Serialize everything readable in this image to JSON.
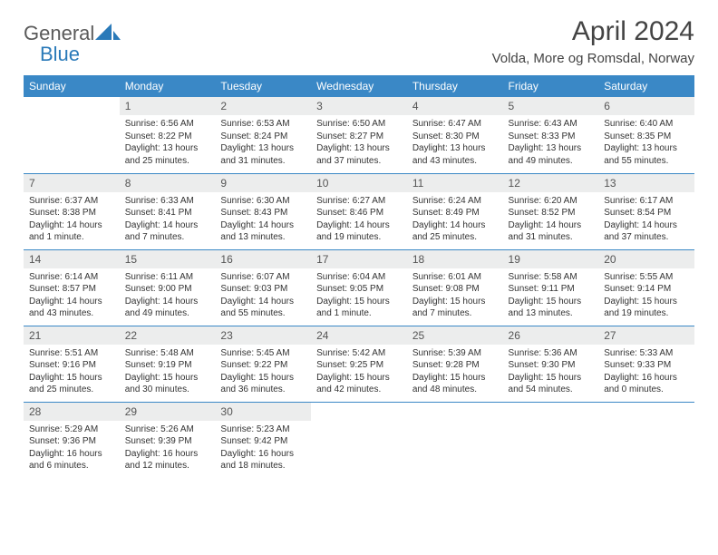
{
  "logo": {
    "text1": "General",
    "text2": "Blue"
  },
  "title": "April 2024",
  "location": "Volda, More og Romsdal, Norway",
  "colors": {
    "header_bg": "#3a88c6",
    "header_text": "#ffffff",
    "daynum_bg": "#eceded",
    "border": "#3a88c6",
    "logo_gray": "#5a5a5a",
    "logo_blue": "#2a7ab9"
  },
  "day_headers": [
    "Sunday",
    "Monday",
    "Tuesday",
    "Wednesday",
    "Thursday",
    "Friday",
    "Saturday"
  ],
  "weeks": [
    [
      {
        "n": "",
        "empty": true
      },
      {
        "n": "1",
        "sunrise": "Sunrise: 6:56 AM",
        "sunset": "Sunset: 8:22 PM",
        "daylight": "Daylight: 13 hours and 25 minutes."
      },
      {
        "n": "2",
        "sunrise": "Sunrise: 6:53 AM",
        "sunset": "Sunset: 8:24 PM",
        "daylight": "Daylight: 13 hours and 31 minutes."
      },
      {
        "n": "3",
        "sunrise": "Sunrise: 6:50 AM",
        "sunset": "Sunset: 8:27 PM",
        "daylight": "Daylight: 13 hours and 37 minutes."
      },
      {
        "n": "4",
        "sunrise": "Sunrise: 6:47 AM",
        "sunset": "Sunset: 8:30 PM",
        "daylight": "Daylight: 13 hours and 43 minutes."
      },
      {
        "n": "5",
        "sunrise": "Sunrise: 6:43 AM",
        "sunset": "Sunset: 8:33 PM",
        "daylight": "Daylight: 13 hours and 49 minutes."
      },
      {
        "n": "6",
        "sunrise": "Sunrise: 6:40 AM",
        "sunset": "Sunset: 8:35 PM",
        "daylight": "Daylight: 13 hours and 55 minutes."
      }
    ],
    [
      {
        "n": "7",
        "sunrise": "Sunrise: 6:37 AM",
        "sunset": "Sunset: 8:38 PM",
        "daylight": "Daylight: 14 hours and 1 minute."
      },
      {
        "n": "8",
        "sunrise": "Sunrise: 6:33 AM",
        "sunset": "Sunset: 8:41 PM",
        "daylight": "Daylight: 14 hours and 7 minutes."
      },
      {
        "n": "9",
        "sunrise": "Sunrise: 6:30 AM",
        "sunset": "Sunset: 8:43 PM",
        "daylight": "Daylight: 14 hours and 13 minutes."
      },
      {
        "n": "10",
        "sunrise": "Sunrise: 6:27 AM",
        "sunset": "Sunset: 8:46 PM",
        "daylight": "Daylight: 14 hours and 19 minutes."
      },
      {
        "n": "11",
        "sunrise": "Sunrise: 6:24 AM",
        "sunset": "Sunset: 8:49 PM",
        "daylight": "Daylight: 14 hours and 25 minutes."
      },
      {
        "n": "12",
        "sunrise": "Sunrise: 6:20 AM",
        "sunset": "Sunset: 8:52 PM",
        "daylight": "Daylight: 14 hours and 31 minutes."
      },
      {
        "n": "13",
        "sunrise": "Sunrise: 6:17 AM",
        "sunset": "Sunset: 8:54 PM",
        "daylight": "Daylight: 14 hours and 37 minutes."
      }
    ],
    [
      {
        "n": "14",
        "sunrise": "Sunrise: 6:14 AM",
        "sunset": "Sunset: 8:57 PM",
        "daylight": "Daylight: 14 hours and 43 minutes."
      },
      {
        "n": "15",
        "sunrise": "Sunrise: 6:11 AM",
        "sunset": "Sunset: 9:00 PM",
        "daylight": "Daylight: 14 hours and 49 minutes."
      },
      {
        "n": "16",
        "sunrise": "Sunrise: 6:07 AM",
        "sunset": "Sunset: 9:03 PM",
        "daylight": "Daylight: 14 hours and 55 minutes."
      },
      {
        "n": "17",
        "sunrise": "Sunrise: 6:04 AM",
        "sunset": "Sunset: 9:05 PM",
        "daylight": "Daylight: 15 hours and 1 minute."
      },
      {
        "n": "18",
        "sunrise": "Sunrise: 6:01 AM",
        "sunset": "Sunset: 9:08 PM",
        "daylight": "Daylight: 15 hours and 7 minutes."
      },
      {
        "n": "19",
        "sunrise": "Sunrise: 5:58 AM",
        "sunset": "Sunset: 9:11 PM",
        "daylight": "Daylight: 15 hours and 13 minutes."
      },
      {
        "n": "20",
        "sunrise": "Sunrise: 5:55 AM",
        "sunset": "Sunset: 9:14 PM",
        "daylight": "Daylight: 15 hours and 19 minutes."
      }
    ],
    [
      {
        "n": "21",
        "sunrise": "Sunrise: 5:51 AM",
        "sunset": "Sunset: 9:16 PM",
        "daylight": "Daylight: 15 hours and 25 minutes."
      },
      {
        "n": "22",
        "sunrise": "Sunrise: 5:48 AM",
        "sunset": "Sunset: 9:19 PM",
        "daylight": "Daylight: 15 hours and 30 minutes."
      },
      {
        "n": "23",
        "sunrise": "Sunrise: 5:45 AM",
        "sunset": "Sunset: 9:22 PM",
        "daylight": "Daylight: 15 hours and 36 minutes."
      },
      {
        "n": "24",
        "sunrise": "Sunrise: 5:42 AM",
        "sunset": "Sunset: 9:25 PM",
        "daylight": "Daylight: 15 hours and 42 minutes."
      },
      {
        "n": "25",
        "sunrise": "Sunrise: 5:39 AM",
        "sunset": "Sunset: 9:28 PM",
        "daylight": "Daylight: 15 hours and 48 minutes."
      },
      {
        "n": "26",
        "sunrise": "Sunrise: 5:36 AM",
        "sunset": "Sunset: 9:30 PM",
        "daylight": "Daylight: 15 hours and 54 minutes."
      },
      {
        "n": "27",
        "sunrise": "Sunrise: 5:33 AM",
        "sunset": "Sunset: 9:33 PM",
        "daylight": "Daylight: 16 hours and 0 minutes."
      }
    ],
    [
      {
        "n": "28",
        "sunrise": "Sunrise: 5:29 AM",
        "sunset": "Sunset: 9:36 PM",
        "daylight": "Daylight: 16 hours and 6 minutes."
      },
      {
        "n": "29",
        "sunrise": "Sunrise: 5:26 AM",
        "sunset": "Sunset: 9:39 PM",
        "daylight": "Daylight: 16 hours and 12 minutes."
      },
      {
        "n": "30",
        "sunrise": "Sunrise: 5:23 AM",
        "sunset": "Sunset: 9:42 PM",
        "daylight": "Daylight: 16 hours and 18 minutes."
      },
      {
        "n": "",
        "empty": true
      },
      {
        "n": "",
        "empty": true
      },
      {
        "n": "",
        "empty": true
      },
      {
        "n": "",
        "empty": true
      }
    ]
  ]
}
